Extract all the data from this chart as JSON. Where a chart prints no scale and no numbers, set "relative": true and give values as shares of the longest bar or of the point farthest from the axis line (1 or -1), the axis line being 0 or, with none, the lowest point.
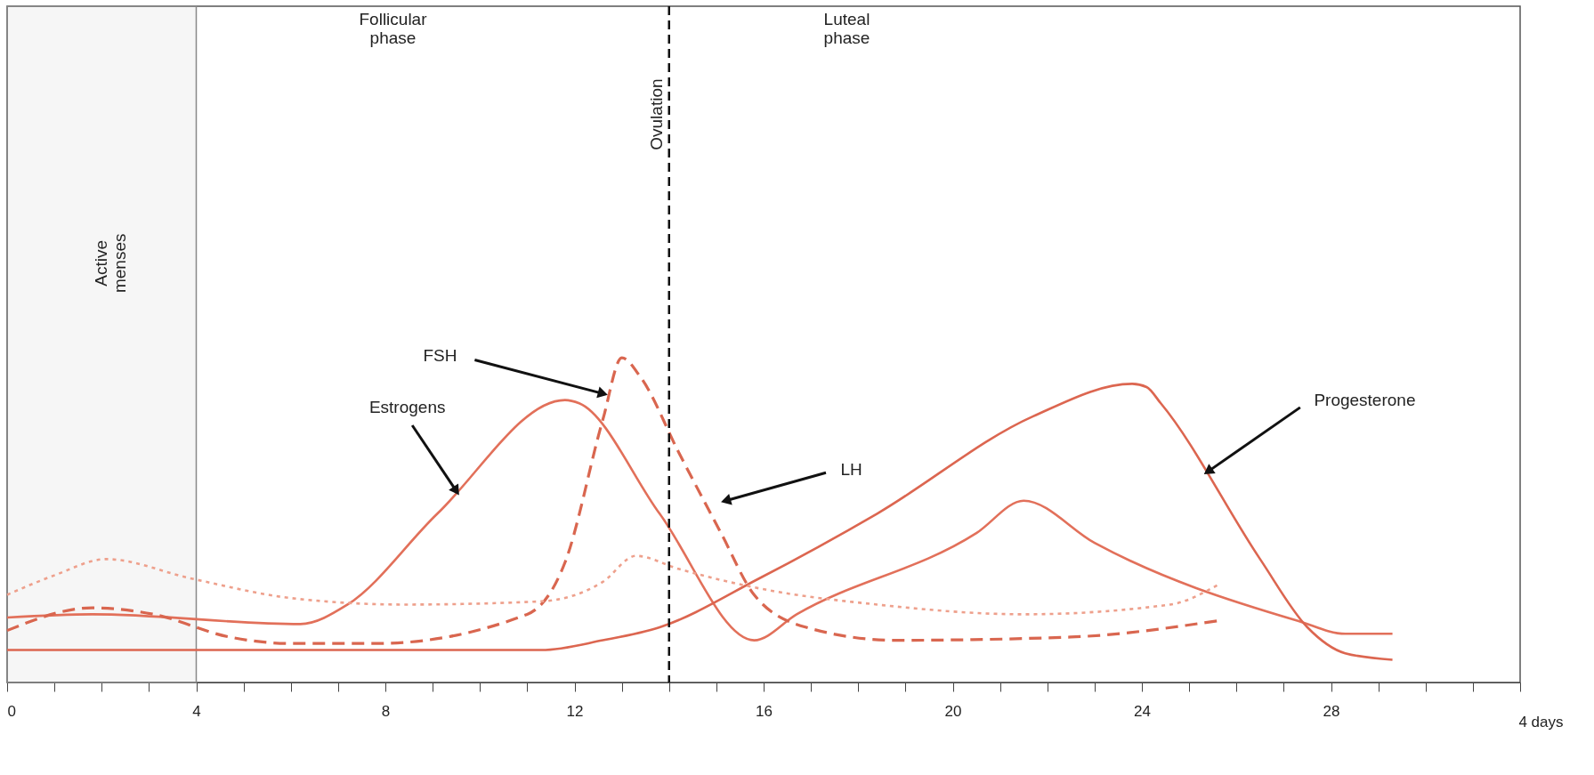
{
  "chart_data": {
    "type": "line",
    "relative": true,
    "xlim": [
      0,
      32
    ],
    "xticks": [
      0,
      {
        "value": 1,
        "label": null
      },
      {
        "value": 2,
        "label": null
      },
      {
        "value": 3,
        "label": null
      },
      4,
      {
        "value": 5,
        "label": null
      },
      {
        "value": 6,
        "label": null
      },
      {
        "value": 7,
        "label": null
      },
      8,
      {
        "value": 9,
        "label": null
      },
      {
        "value": 10,
        "label": null
      },
      {
        "value": 11,
        "label": null
      },
      12,
      {
        "value": 13,
        "label": null
      },
      {
        "value": 14,
        "label": null
      },
      {
        "value": 15,
        "label": null
      },
      16,
      {
        "value": 17,
        "label": null
      },
      {
        "value": 18,
        "label": null
      },
      {
        "value": 19,
        "label": null
      },
      20,
      {
        "value": 21,
        "label": null
      },
      {
        "value": 22,
        "label": null
      },
      {
        "value": 23,
        "label": null
      },
      24,
      {
        "value": 25,
        "label": null
      },
      {
        "value": 26,
        "label": null
      },
      {
        "value": 27,
        "label": null
      },
      28,
      {
        "value": 29,
        "label": null
      },
      {
        "value": 30,
        "label": null
      },
      {
        "value": 31,
        "label": null
      },
      {
        "value": 32,
        "label": null
      }
    ],
    "grid": false,
    "legend": false,
    "marker": "none",
    "series": [
      {
        "color": "#e2705a",
        "line_style": "solid",
        "x": [
          0,
          1.8,
          6.2,
          7.2,
          9.1,
          11.8,
          12.1,
          13.8,
          15.8,
          16.7,
          20.5,
          21.5,
          23,
          27.3,
          28.3,
          29.3
        ],
        "values": [
          0.2,
          0.21,
          0.18,
          0.24,
          0.52,
          0.87,
          0.86,
          0.52,
          0.13,
          0.21,
          0.46,
          0.56,
          0.43,
          0.19,
          0.15,
          0.15
        ]
      },
      {
        "color": "#dc6650",
        "line_style": "solid",
        "x": [
          0,
          11.3,
          12.6,
          13.8,
          15.9,
          18.4,
          21.7,
          23.8,
          24.1,
          24.4,
          26.5,
          27.5,
          28.3,
          29.3
        ],
        "values": [
          0.1,
          0.1,
          0.13,
          0.17,
          0.32,
          0.52,
          0.82,
          0.92,
          0.91,
          0.86,
          0.38,
          0.17,
          0.09,
          0.07
        ]
      },
      {
        "color": "#d9664f",
        "line_style": "dashed",
        "x": [
          0,
          1.8,
          3.1,
          4.7,
          6,
          7.8,
          11,
          11.8,
          12.6,
          13,
          13.4,
          14.2,
          15.1,
          15.8,
          16.9,
          18.8,
          22.5,
          25.6
        ],
        "values": [
          0.16,
          0.23,
          0.21,
          0.14,
          0.12,
          0.12,
          0.21,
          0.37,
          0.81,
          1.0,
          0.94,
          0.71,
          0.46,
          0.27,
          0.17,
          0.13,
          0.14,
          0.19
        ]
      },
      {
        "color": "#eea08c",
        "line_style": "dotted",
        "x": [
          0,
          1,
          2.1,
          3.9,
          6,
          8.4,
          11.3,
          12.6,
          13.3,
          14.2,
          15.9,
          18.4,
          21.5,
          24.6,
          25.6
        ],
        "values": [
          0.27,
          0.33,
          0.38,
          0.32,
          0.26,
          0.24,
          0.25,
          0.31,
          0.39,
          0.35,
          0.29,
          0.24,
          0.21,
          0.24,
          0.3
        ]
      }
    ],
    "ref_lines": [
      {
        "axis": "x",
        "value": 14,
        "label": "Ovulation",
        "color": "#111111",
        "line_style": "dashed"
      }
    ],
    "bands": [
      {
        "axis": "x",
        "from": 0,
        "to": 4,
        "label": "Active menses",
        "color": "#888888"
      }
    ],
    "annotations": [
      {
        "text": "FSH",
        "x": 12.6,
        "y": 0.89
      },
      {
        "text": "LH",
        "x": 15.2,
        "y": 0.56
      },
      {
        "text": "Estrogens",
        "x": 9.5,
        "y": 0.59
      },
      {
        "text": "Progesterone",
        "x": 25.4,
        "y": 0.65
      },
      "Follicular phase",
      "Luteal phase"
    ],
    "xlabel": "4 days"
  }
}
